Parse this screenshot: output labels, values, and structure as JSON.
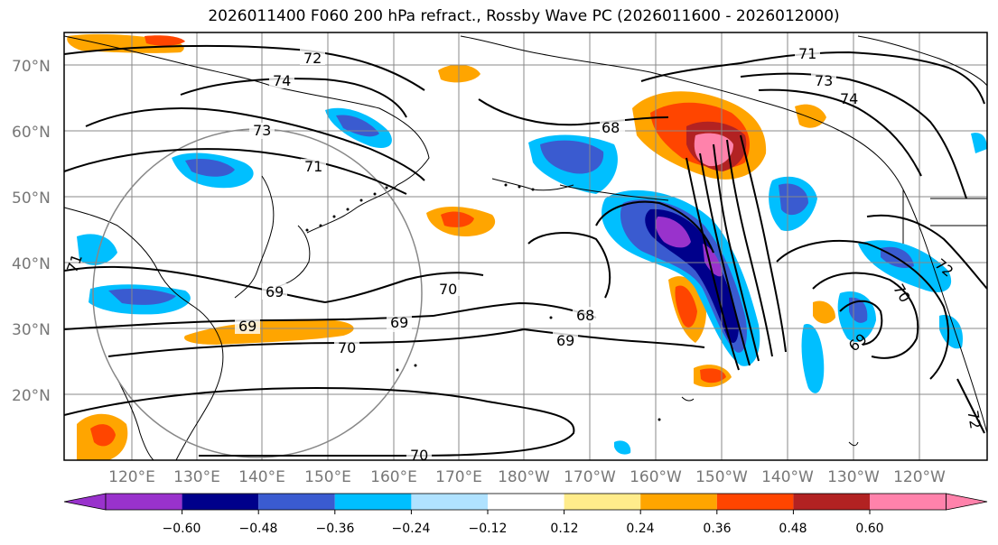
{
  "title": "2026011400 F060 200 hPa refract., Rossby Wave PC (2026011600 - 2026012000)",
  "lat_labels": [
    "70°N",
    "60°N",
    "50°N",
    "40°N",
    "30°N",
    "20°N"
  ],
  "lon_labels": [
    "120°E",
    "130°E",
    "140°E",
    "150°E",
    "160°E",
    "170°E",
    "180°W",
    "170°W",
    "160°W",
    "150°W",
    "140°W",
    "130°W",
    "120°W"
  ],
  "colorbar": {
    "colors": [
      "#9932cc",
      "#00008b",
      "#3a5bd0",
      "#00bfff",
      "#b0e2ff",
      "#ffffff",
      "#ffec8b",
      "#ffa500",
      "#ff4500",
      "#b22222",
      "#ff82ab"
    ],
    "tick_labels": [
      "−0.60",
      "−0.48",
      "−0.36",
      "−0.24",
      "−0.12",
      "0.12",
      "0.24",
      "0.36",
      "0.48",
      "0.60"
    ]
  },
  "contour_labels": [
    "72",
    "74",
    "73",
    "71",
    "69",
    "69",
    "70",
    "71",
    "70",
    "69",
    "68",
    "69",
    "71",
    "68",
    "73",
    "74",
    "72",
    "70",
    "69",
    "70",
    "72"
  ]
}
